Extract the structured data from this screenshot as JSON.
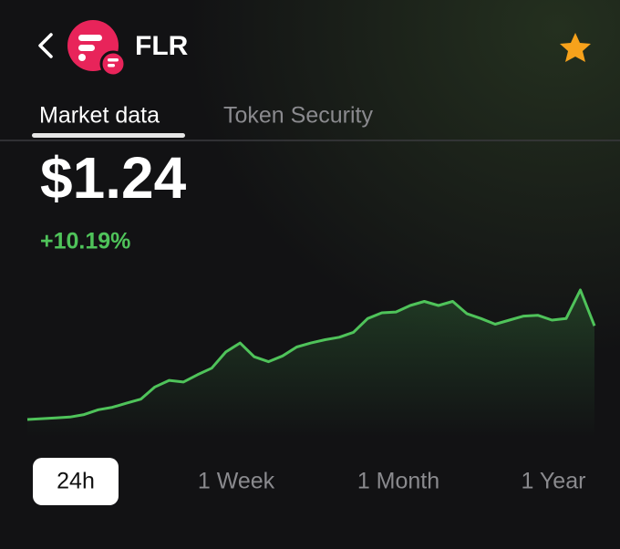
{
  "header": {
    "title": "FLR"
  },
  "tabs": [
    "Market data",
    "Token Security"
  ],
  "price": "$1.24",
  "change": "+10.19%",
  "chart_data": {
    "type": "line",
    "color": "#4fc35a",
    "values": [
      1.125,
      1.126,
      1.127,
      1.128,
      1.131,
      1.137,
      1.14,
      1.145,
      1.15,
      1.165,
      1.173,
      1.171,
      1.18,
      1.188,
      1.208,
      1.219,
      1.202,
      1.196,
      1.203,
      1.214,
      1.219,
      1.223,
      1.226,
      1.232,
      1.249,
      1.256,
      1.257,
      1.265,
      1.27,
      1.265,
      1.27,
      1.255,
      1.249,
      1.242,
      1.247,
      1.252,
      1.253,
      1.247,
      1.249,
      1.284,
      1.24
    ]
  },
  "ranges": [
    "24h",
    "1 Week",
    "1 Month",
    "1 Year"
  ]
}
